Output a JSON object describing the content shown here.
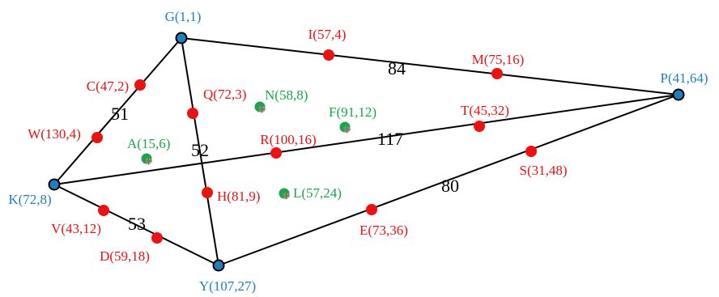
{
  "colors": {
    "main_node": "#1f7fbf",
    "red_node": "#ee1111",
    "green_node": "#1aa64a",
    "main_label": "#1f7fbf",
    "red_label": "#ee1111",
    "green_label": "#1aa64a",
    "edge": "#000000",
    "weight_text": "#000000"
  },
  "nodes": {
    "G": {
      "label": "G(1,1)",
      "type": "main"
    },
    "P": {
      "label": "P(41,64)",
      "type": "main"
    },
    "K": {
      "label": "K(72,8)",
      "type": "main"
    },
    "Y": {
      "label": "Y(107,27)",
      "type": "main"
    },
    "I": {
      "label": "I(57,4)",
      "type": "red"
    },
    "M": {
      "label": "M(75,16)",
      "type": "red"
    },
    "C": {
      "label": "C(47,2)",
      "type": "red"
    },
    "Q": {
      "label": "Q(72,3)",
      "type": "red"
    },
    "W": {
      "label": "W(130,4)",
      "type": "red"
    },
    "R": {
      "label": "R(100,16)",
      "type": "red"
    },
    "T": {
      "label": "T(45,32)",
      "type": "red"
    },
    "S": {
      "label": "S(31,48)",
      "type": "red"
    },
    "H": {
      "label": "H(81,9)",
      "type": "red"
    },
    "V": {
      "label": "V(43,12)",
      "type": "red"
    },
    "D": {
      "label": "D(59,18)",
      "type": "red"
    },
    "E": {
      "label": "E(73,36)",
      "type": "red"
    },
    "N": {
      "label": "N(58,8)",
      "type": "green"
    },
    "F": {
      "label": "F(91,12)",
      "type": "green"
    },
    "A": {
      "label": "A(15,6)",
      "type": "green"
    },
    "L": {
      "label": "L(57,24)",
      "type": "green"
    }
  },
  "edges": [
    {
      "from": "G",
      "to": "P",
      "weight": "84"
    },
    {
      "from": "G",
      "to": "K",
      "weight": "51"
    },
    {
      "from": "G",
      "to": "Y",
      "weight": "52"
    },
    {
      "from": "K",
      "to": "P",
      "weight": "117"
    },
    {
      "from": "K",
      "to": "Y",
      "weight": "53"
    },
    {
      "from": "Y",
      "to": "P",
      "weight": "80"
    }
  ]
}
